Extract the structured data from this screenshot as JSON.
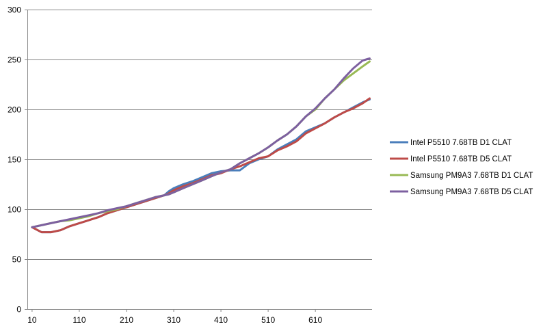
{
  "chart_data": {
    "type": "line",
    "title": "",
    "xlabel": "",
    "ylabel": "",
    "ylim": [
      0,
      300
    ],
    "y_ticks": [
      0,
      50,
      100,
      150,
      200,
      250,
      300
    ],
    "x_tick_labels": [
      "10",
      "110",
      "210",
      "310",
      "410",
      "510",
      "610"
    ],
    "grid": "horizontal",
    "legend_position": "right",
    "x": [
      10,
      30,
      50,
      70,
      90,
      110,
      130,
      150,
      170,
      190,
      210,
      230,
      250,
      270,
      290,
      300,
      310,
      330,
      350,
      370,
      390,
      410,
      430,
      450,
      470,
      490,
      510,
      530,
      550,
      570,
      590,
      610,
      630,
      650,
      670,
      690,
      710,
      725
    ],
    "series": [
      {
        "name": "Intel P5510 7.68TB D1 CLAT",
        "color": "#4a7ebb",
        "values": [
          82,
          77,
          77,
          79,
          83,
          86,
          89,
          92,
          96,
          99,
          102,
          105,
          108,
          111,
          114,
          118,
          121,
          125,
          128,
          132,
          136,
          138,
          139,
          139,
          146,
          150,
          153,
          160,
          165,
          170,
          178,
          182,
          186,
          192,
          197,
          202,
          207,
          210
        ]
      },
      {
        "name": "Intel P5510 7.68TB D5 CLAT",
        "color": "#be4b48",
        "values": [
          82,
          77,
          77,
          79,
          83,
          86,
          89,
          92,
          96,
          99,
          102,
          105,
          108,
          111,
          114,
          116,
          119,
          123,
          126,
          130,
          134,
          136,
          140,
          143,
          147,
          151,
          153,
          159,
          163,
          168,
          176,
          181,
          186,
          192,
          197,
          201,
          206,
          211
        ]
      },
      {
        "name": "Samsung PM9A3 7.68TB D1 CLAT",
        "color": "#98b954",
        "values": [
          82,
          84,
          86,
          88,
          89,
          91,
          93,
          96,
          98,
          100,
          103,
          106,
          109,
          112,
          114,
          115,
          117,
          121,
          125,
          129,
          133,
          137,
          140,
          146,
          151,
          156,
          162,
          169,
          175,
          183,
          193,
          200,
          211,
          220,
          229,
          236,
          243,
          248
        ]
      },
      {
        "name": "Samsung PM9A3 7.68TB D5 CLAT",
        "color": "#7d60a0",
        "values": [
          82,
          84,
          86,
          88,
          90,
          92,
          94,
          96,
          99,
          101,
          103,
          106,
          109,
          112,
          114,
          115,
          117,
          121,
          125,
          129,
          133,
          137,
          140,
          146,
          151,
          156,
          162,
          169,
          175,
          183,
          193,
          201,
          211,
          220,
          231,
          241,
          249,
          251
        ]
      }
    ]
  }
}
